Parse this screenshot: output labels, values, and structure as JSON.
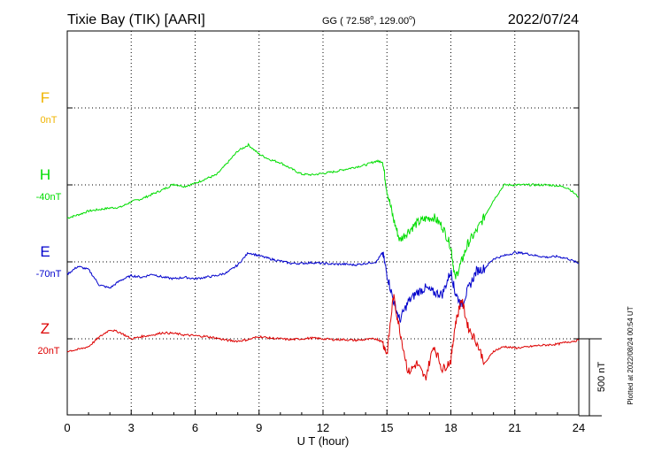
{
  "header": {
    "station": "Tixie Bay (TIK)  [AARI]",
    "coords_prefix": "GG ( 72.58",
    "coords_mid": ", 129.00",
    "coords_suffix": ")",
    "degree_mark": "o",
    "date": "2022/07/24"
  },
  "footer": {
    "plotted": "Plotted at 2022/08/24 00:54 UT"
  },
  "chart_data": {
    "type": "line",
    "title": "Tixie Bay (TIK)  [AARI]",
    "xlabel": "U T (hour)",
    "xlim": [
      0,
      24
    ],
    "xticks": [
      "0",
      "3",
      "6",
      "9",
      "12",
      "15",
      "18",
      "21",
      "24"
    ],
    "grid": true,
    "scale_bar": {
      "label": "500 nT",
      "value_nT": 500
    },
    "components": [
      {
        "name": "F",
        "baseline": "0nT",
        "color": "#f0b400"
      },
      {
        "name": "H",
        "baseline": "-40nT",
        "color": "#00dd00"
      },
      {
        "name": "E",
        "baseline": "-70nT",
        "color": "#0000cc"
      },
      {
        "name": "Z",
        "baseline": "20nT",
        "color": "#dd0000"
      }
    ],
    "series": [
      {
        "name": "H",
        "x": [
          0,
          0.5,
          1,
          1.5,
          2,
          2.5,
          3,
          3.5,
          4,
          4.5,
          5,
          5.5,
          6,
          6.5,
          7,
          7.5,
          8,
          8.5,
          9,
          9.5,
          10,
          10.5,
          11,
          11.5,
          12,
          12.5,
          13,
          13.5,
          14,
          14.5,
          14.8,
          15,
          15.3,
          15.6,
          16,
          16.4,
          16.8,
          17.2,
          17.6,
          18,
          18.2,
          18.5,
          18.8,
          19.2,
          19.6,
          20,
          20.5,
          21,
          21.5,
          22,
          22.5,
          23,
          23.5,
          24
        ],
        "values": [
          -215,
          -195,
          -170,
          -160,
          -150,
          -145,
          -110,
          -90,
          -60,
          -30,
          5,
          -10,
          10,
          40,
          65,
          140,
          220,
          260,
          200,
          165,
          145,
          105,
          70,
          65,
          75,
          85,
          100,
          115,
          130,
          155,
          150,
          -35,
          -220,
          -360,
          -300,
          -250,
          -220,
          -210,
          -270,
          -400,
          -610,
          -500,
          -380,
          -300,
          -200,
          -100,
          0,
          0,
          0,
          0,
          0,
          -5,
          -20,
          -80
        ]
      },
      {
        "name": "E",
        "x": [
          0,
          0.5,
          1,
          1.5,
          2,
          2.5,
          3,
          3.5,
          4,
          4.5,
          5,
          5.5,
          6,
          6.5,
          7,
          7.5,
          8,
          8.5,
          9,
          9.5,
          10,
          10.5,
          11,
          11.5,
          12,
          12.5,
          13,
          13.5,
          14,
          14.5,
          14.8,
          15,
          15.3,
          15.6,
          16,
          16.4,
          16.8,
          17.2,
          17.6,
          18,
          18.2,
          18.5,
          18.8,
          19.2,
          19.6,
          20,
          20.5,
          21,
          21.5,
          22,
          22.5,
          23,
          23.5,
          24
        ],
        "values": [
          -80,
          -30,
          -50,
          -150,
          -170,
          -120,
          -90,
          -100,
          -80,
          -100,
          -110,
          -100,
          -110,
          -100,
          -90,
          -70,
          -20,
          60,
          40,
          20,
          5,
          -10,
          -10,
          -5,
          -10,
          -15,
          -15,
          -20,
          -10,
          0,
          60,
          -80,
          -250,
          -380,
          -260,
          -200,
          -170,
          -200,
          -210,
          -60,
          -200,
          -280,
          -180,
          -60,
          -40,
          20,
          40,
          60,
          55,
          40,
          30,
          35,
          20,
          -10
        ]
      },
      {
        "name": "Z",
        "x": [
          0,
          0.5,
          1,
          1.5,
          2,
          2.5,
          3,
          3.5,
          4,
          4.5,
          5,
          5.5,
          6,
          6.5,
          7,
          7.5,
          8,
          8.5,
          9,
          9.5,
          10,
          10.5,
          11,
          11.5,
          12,
          12.5,
          13,
          13.5,
          14,
          14.5,
          14.8,
          15,
          15.3,
          15.6,
          16,
          16.4,
          16.8,
          17.2,
          17.6,
          18,
          18.2,
          18.5,
          18.8,
          19.2,
          19.6,
          20,
          20.5,
          21,
          21.5,
          22,
          22.5,
          23,
          23.5,
          24
        ],
        "values": [
          -80,
          -70,
          -50,
          10,
          60,
          40,
          0,
          15,
          25,
          40,
          35,
          25,
          20,
          15,
          5,
          -10,
          -15,
          -5,
          15,
          5,
          0,
          -5,
          0,
          5,
          0,
          -5,
          -5,
          -10,
          -5,
          0,
          -20,
          -100,
          280,
          60,
          -220,
          -160,
          -260,
          -40,
          -200,
          -140,
          90,
          260,
          80,
          -20,
          -160,
          -80,
          -50,
          -60,
          -55,
          -45,
          -40,
          -35,
          -20,
          -10
        ]
      }
    ]
  }
}
